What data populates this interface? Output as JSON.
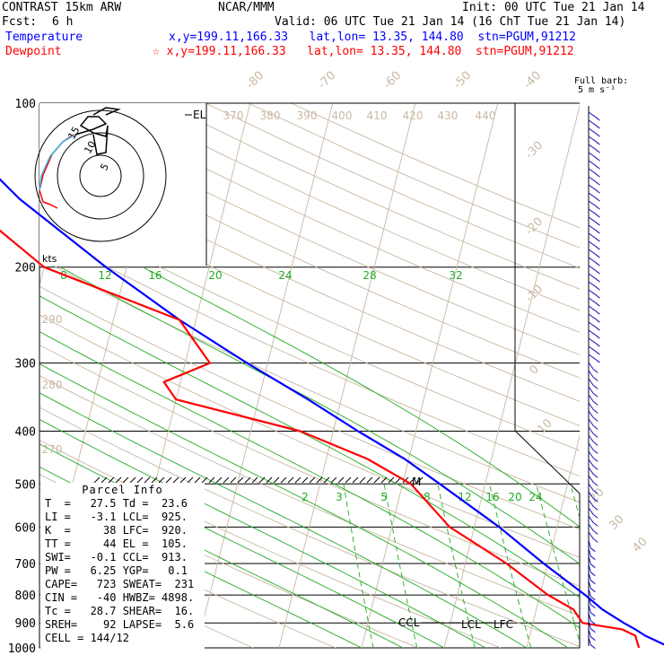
{
  "header": {
    "model": "CONTRAST 15km ARW",
    "center": "NCAR/MMM",
    "init": "Init: 00 UTC Tue 21 Jan 14",
    "fcst_label": "Fcst:",
    "fcst_value": "6 h",
    "valid": "Valid: 06 UTC Tue 21 Jan 14 (16 ChT Tue 21 Jan 14)",
    "temp_label": "Temperature",
    "temp_info": "x,y=199.11,166.33   lat,lon= 13.35, 144.80  stn=PGUM,91212",
    "dew_label": "Dewpoint",
    "dew_info": "☆ x,y=199.11,166.33   lat,lon= 13.35, 144.80  stn=PGUM,91212",
    "barb_legend_1": "Full barb:",
    "barb_legend_2": "5 m s⁻¹"
  },
  "parcel": {
    "title": "Parcel Info",
    "rows": [
      "T  =   27.5 Td =  23.6",
      "LI =   -3.1 LCL=  925.",
      "K  =     38 LFC=  920.",
      "TT =     44 EL =  105.",
      "SWI=   -0.1 CCL=  913.",
      "PW =   6.25 YGP=   0.1",
      "CAPE=   723 SWEAT=  231",
      "CIN =   -40 HWBZ= 4898.",
      "Tc =   28.7 SHEAR=  16.",
      "SREH=    92 LAPSE=  5.6",
      "CELL = 144/12"
    ]
  },
  "hodograph": {
    "units": "kts",
    "ring_labels": [
      "5",
      "10",
      "15"
    ]
  },
  "chart_data": {
    "type": "line",
    "pressure_levels": [
      100,
      200,
      300,
      400,
      500,
      600,
      700,
      800,
      900,
      1000
    ],
    "pressure_labels": [
      "100",
      "200",
      "300",
      "400",
      "500",
      "600",
      "700",
      "800",
      "900",
      "1000"
    ],
    "isotherm_labels": [
      "-80",
      "-70",
      "-60",
      "-50",
      "-40",
      "-30",
      "-20",
      "-10",
      "0",
      "10",
      "20",
      "30",
      "40"
    ],
    "dry_adiabat_labels": [
      "370",
      "380",
      "390",
      "400",
      "410",
      "420",
      "430",
      "440",
      "290",
      "280",
      "270"
    ],
    "mixing_ratio_labels_upper": [
      "8",
      "12",
      "16",
      "20",
      "24",
      "28",
      "32"
    ],
    "mixing_ratio_labels_lower": [
      "2",
      "3",
      "5",
      "8",
      "12",
      "16",
      "20",
      "24"
    ],
    "markers": {
      "el": "EL",
      "ccl": "CCL",
      "lcl": "LCL",
      "lfc": "LFC",
      "m": "M"
    },
    "series": [
      {
        "name": "Temperature",
        "color": "#0000ff",
        "points": [
          [
            1000,
            27.5
          ],
          [
            950,
            24
          ],
          [
            925,
            22.6
          ],
          [
            900,
            21
          ],
          [
            850,
            18
          ],
          [
            800,
            15.5
          ],
          [
            700,
            9.5
          ],
          [
            600,
            3
          ],
          [
            500,
            -5.5
          ],
          [
            450,
            -10.5
          ],
          [
            400,
            -17
          ],
          [
            350,
            -24
          ],
          [
            300,
            -32.5
          ],
          [
            250,
            -42
          ],
          [
            200,
            -52.5
          ],
          [
            150,
            -65
          ],
          [
            120,
            -73
          ],
          [
            100,
            -78
          ]
        ]
      },
      {
        "name": "Dewpoint",
        "color": "#ff0000",
        "points": [
          [
            1000,
            23.6
          ],
          [
            950,
            22.8
          ],
          [
            925,
            21
          ],
          [
            900,
            16
          ],
          [
            850,
            14.5
          ],
          [
            800,
            11
          ],
          [
            700,
            5
          ],
          [
            600,
            -3
          ],
          [
            500,
            -9
          ],
          [
            450,
            -15
          ],
          [
            400,
            -24
          ],
          [
            350,
            -40
          ],
          [
            325,
            -42
          ],
          [
            300,
            -37
          ],
          [
            250,
            -42
          ],
          [
            200,
            -60
          ],
          [
            150,
            -72
          ],
          [
            120,
            -74
          ],
          [
            100,
            -75
          ]
        ]
      }
    ]
  }
}
